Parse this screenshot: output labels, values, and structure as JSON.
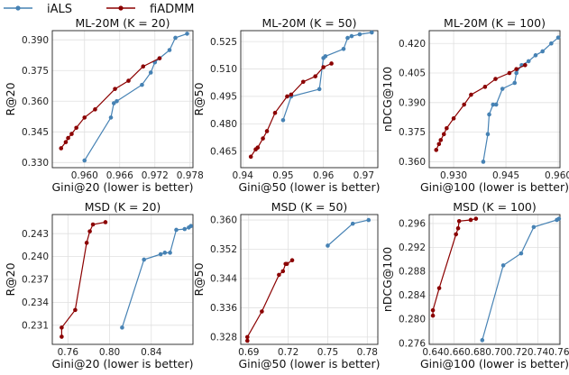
{
  "legend": [
    {
      "name": "iALS",
      "color": "#4682b4"
    },
    {
      "name": "fiADMM",
      "color": "#8b0000"
    }
  ],
  "chart_data": [
    {
      "type": "line",
      "title": "ML-20M (K = 20)",
      "xlabel": "Gini@20 (lower is better)",
      "ylabel": "R@20",
      "xlim": [
        0.9545,
        0.9785
      ],
      "ylim": [
        0.3275,
        0.3945
      ],
      "xticks": [
        0.96,
        0.966,
        0.972,
        0.978
      ],
      "xtick_labels": [
        "0.960",
        "0.966",
        "0.972",
        "0.978"
      ],
      "yticks": [
        0.33,
        0.345,
        0.36,
        0.375,
        0.39
      ],
      "ytick_labels": [
        "0.330",
        "0.345",
        "0.360",
        "0.375",
        "0.390"
      ],
      "grid": true,
      "series": [
        {
          "name": "iALS",
          "x": [
            0.96,
            0.9645,
            0.965,
            0.9655,
            0.9698,
            0.9713,
            0.972,
            0.9728,
            0.9745,
            0.9755,
            0.9775
          ],
          "y": [
            0.331,
            0.352,
            0.359,
            0.36,
            0.368,
            0.374,
            0.379,
            0.381,
            0.385,
            0.391,
            0.393
          ]
        },
        {
          "name": "fiADMM",
          "x": [
            0.956,
            0.9568,
            0.9572,
            0.9578,
            0.9586,
            0.96,
            0.9618,
            0.9652,
            0.9675,
            0.97,
            0.9728
          ],
          "y": [
            0.337,
            0.34,
            0.342,
            0.344,
            0.347,
            0.352,
            0.356,
            0.366,
            0.37,
            0.377,
            0.381
          ]
        }
      ]
    },
    {
      "type": "line",
      "title": "ML-20M (K = 50)",
      "xlabel": "Gini@50 (lower is better)",
      "ylabel": "R@50",
      "xlim": [
        0.9395,
        0.9735
      ],
      "ylim": [
        0.456,
        0.531
      ],
      "xticks": [
        0.94,
        0.95,
        0.96,
        0.97
      ],
      "xtick_labels": [
        "0.94",
        "0.95",
        "0.96",
        "0.97"
      ],
      "yticks": [
        0.465,
        0.48,
        0.495,
        0.51,
        0.525
      ],
      "ytick_labels": [
        "0.465",
        "0.480",
        "0.495",
        "0.510",
        "0.525"
      ],
      "grid": true,
      "series": [
        {
          "name": "iALS",
          "x": [
            0.95,
            0.952,
            0.959,
            0.96,
            0.9605,
            0.965,
            0.966,
            0.967,
            0.969,
            0.972
          ],
          "y": [
            0.482,
            0.495,
            0.499,
            0.516,
            0.517,
            0.521,
            0.527,
            0.528,
            0.529,
            0.53
          ]
        },
        {
          "name": "fiADMM",
          "x": [
            0.942,
            0.9432,
            0.9437,
            0.945,
            0.946,
            0.948,
            0.951,
            0.952,
            0.955,
            0.958,
            0.96,
            0.962
          ],
          "y": [
            0.462,
            0.466,
            0.467,
            0.472,
            0.476,
            0.486,
            0.495,
            0.496,
            0.503,
            0.506,
            0.511,
            0.513
          ]
        }
      ]
    },
    {
      "type": "line",
      "title": "ML-20M (K = 100)",
      "xlabel": "Gini@100 (lower is better)",
      "ylabel": "nDCG@100",
      "xlim": [
        0.923,
        0.9605
      ],
      "ylim": [
        0.357,
        0.4265
      ],
      "xticks": [
        0.93,
        0.945,
        0.96
      ],
      "xtick_labels": [
        "0.930",
        "0.945",
        "0.960"
      ],
      "yticks": [
        0.36,
        0.375,
        0.39,
        0.405,
        0.42
      ],
      "ytick_labels": [
        "0.360",
        "0.375",
        "0.390",
        "0.405",
        "0.420"
      ],
      "grid": true,
      "series": [
        {
          "name": "iALS",
          "x": [
            0.9385,
            0.9398,
            0.9402,
            0.9413,
            0.9422,
            0.944,
            0.9475,
            0.948,
            0.9495,
            0.9515,
            0.9535,
            0.9555,
            0.958,
            0.96
          ],
          "y": [
            0.36,
            0.374,
            0.384,
            0.389,
            0.389,
            0.397,
            0.4,
            0.405,
            0.409,
            0.411,
            0.414,
            0.416,
            0.42,
            0.423
          ]
        },
        {
          "name": "fiADMM",
          "x": [
            0.925,
            0.9258,
            0.9263,
            0.9272,
            0.928,
            0.93,
            0.933,
            0.935,
            0.939,
            0.942,
            0.946,
            0.948,
            0.9505
          ],
          "y": [
            0.366,
            0.369,
            0.371,
            0.374,
            0.377,
            0.382,
            0.389,
            0.394,
            0.398,
            0.402,
            0.405,
            0.407,
            0.409
          ]
        }
      ]
    },
    {
      "type": "line",
      "title": "MSD (K = 20)",
      "xlabel": "Gini@20 (lower is better)",
      "ylabel": "R@20",
      "xlim": [
        0.745,
        0.88
      ],
      "ylim": [
        0.2285,
        0.2455
      ],
      "xticks": [
        0.76,
        0.8,
        0.84
      ],
      "xtick_labels": [
        "0.76",
        "0.80",
        "0.84"
      ],
      "yticks": [
        0.231,
        0.234,
        0.237,
        0.24,
        0.243
      ],
      "ytick_labels": [
        "0.231",
        "0.234",
        "0.237",
        "0.240",
        "0.243"
      ],
      "grid": true,
      "series": [
        {
          "name": "iALS",
          "x": [
            0.812,
            0.833,
            0.849,
            0.853,
            0.858,
            0.864,
            0.872,
            0.876,
            0.878
          ],
          "y": [
            0.2307,
            0.2396,
            0.2403,
            0.2405,
            0.2405,
            0.2435,
            0.2436,
            0.2438,
            0.244
          ]
        },
        {
          "name": "fiADMM",
          "x": [
            0.754,
            0.754,
            0.767,
            0.778,
            0.781,
            0.784,
            0.796
          ],
          "y": [
            0.2295,
            0.2307,
            0.233,
            0.2418,
            0.2433,
            0.2442,
            0.2445
          ]
        }
      ]
    },
    {
      "type": "line",
      "title": "MSD (K = 50)",
      "xlabel": "Gini@50 (lower is better)",
      "ylabel": "R@50",
      "xlim": [
        0.684,
        0.788
      ],
      "ylim": [
        0.326,
        0.3615
      ],
      "xticks": [
        0.69,
        0.72,
        0.75,
        0.78
      ],
      "xtick_labels": [
        "0.69",
        "0.72",
        "0.75",
        "0.78"
      ],
      "yticks": [
        0.328,
        0.336,
        0.344,
        0.352,
        0.36
      ],
      "ytick_labels": [
        "0.328",
        "0.336",
        "0.344",
        "0.352",
        "0.360"
      ],
      "grid": true,
      "series": [
        {
          "name": "iALS",
          "x": [
            0.75,
            0.769,
            0.781
          ],
          "y": [
            0.353,
            0.359,
            0.36
          ]
        },
        {
          "name": "fiADMM",
          "x": [
            0.689,
            0.689,
            0.7,
            0.713,
            0.716,
            0.718,
            0.719,
            0.723
          ],
          "y": [
            0.327,
            0.328,
            0.335,
            0.345,
            0.346,
            0.348,
            0.348,
            0.349
          ]
        }
      ]
    },
    {
      "type": "line",
      "title": "MSD (K = 100)",
      "xlabel": "Gini@100 (lower is better)",
      "ylabel": "nDCG@100",
      "xlim": [
        0.6365,
        0.761
      ],
      "ylim": [
        0.2758,
        0.2975
      ],
      "xticks": [
        0.64,
        0.66,
        0.68,
        0.7,
        0.72,
        0.74,
        0.76
      ],
      "xtick_labels": [
        "0.64",
        "0.66",
        "0.68",
        "0.70",
        "0.72",
        "0.74",
        "0.76"
      ],
      "yticks": [
        0.276,
        0.28,
        0.284,
        0.288,
        0.292,
        0.296
      ],
      "ytick_labels": [
        "0.276",
        "0.280",
        "0.284",
        "0.288",
        "0.292",
        "0.296"
      ],
      "grid": true,
      "series": [
        {
          "name": "iALS",
          "x": [
            0.687,
            0.707,
            0.724,
            0.736,
            0.758,
            0.76
          ],
          "y": [
            0.2765,
            0.289,
            0.291,
            0.2954,
            0.2966,
            0.2968
          ]
        },
        {
          "name": "fiADMM",
          "x": [
            0.64,
            0.64,
            0.646,
            0.662,
            0.664,
            0.665,
            0.676,
            0.681
          ],
          "y": [
            0.2806,
            0.2815,
            0.2852,
            0.2942,
            0.2952,
            0.2964,
            0.2966,
            0.2968
          ]
        }
      ]
    }
  ]
}
